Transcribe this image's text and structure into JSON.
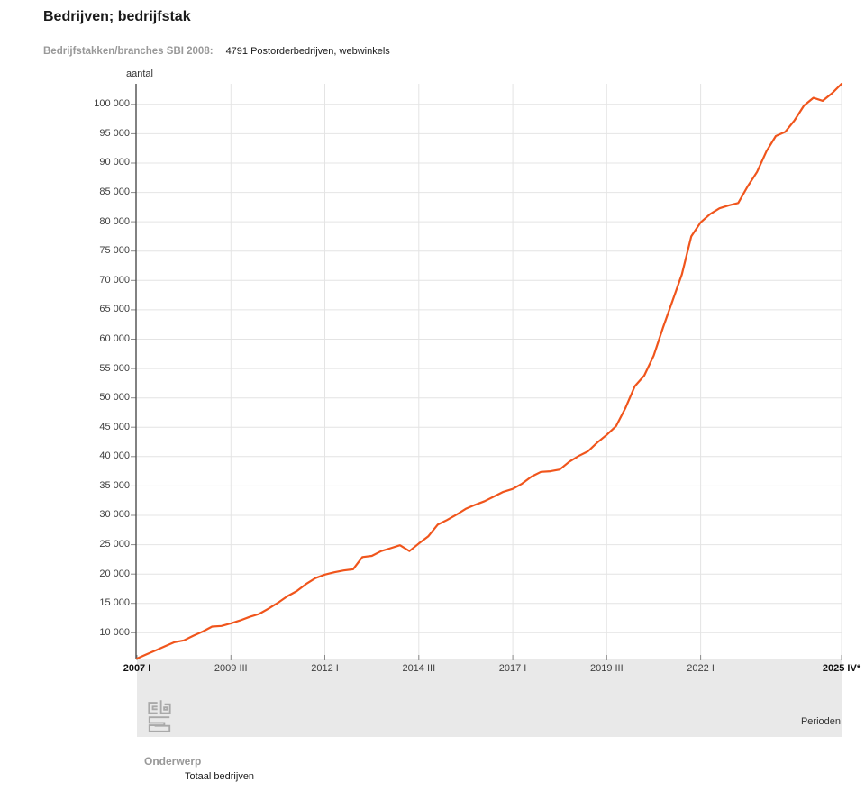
{
  "header": {
    "title": "Bedrijven; bedrijfstak",
    "filter_label": "Bedrijfstakken/branches SBI 2008:",
    "filter_value": "4791 Postorderbedrijven, webwinkels"
  },
  "legend": {
    "heading": "Onderwerp",
    "series_label": "Totaal bedrijven"
  },
  "colors": {
    "series_orange": "#F0551C",
    "gridline": "#e4e4e4",
    "axis": "#4d4d4d",
    "footer_band": "#e9e9e9",
    "muted_label_gray": "#999999"
  },
  "chart_data": {
    "type": "line",
    "title": "Bedrijven; bedrijfstak",
    "subtitle": "Bedrijfstakken/branches SBI 2008: 4791 Postorderbedrijven, webwinkels",
    "ylabel": "aantal",
    "xlabel": "Perioden",
    "x_period_start": "2007 I",
    "x_period_end": "2025 IV*",
    "x_frequency": "quarterly",
    "ylim": [
      5600,
      103500
    ],
    "grid": true,
    "legend_position": "bottom",
    "series_name": "Totaal bedrijven",
    "series_color": "#F0551C",
    "y_ticks": [
      {
        "value": 10000,
        "label": "10 000"
      },
      {
        "value": 15000,
        "label": "15 000"
      },
      {
        "value": 20000,
        "label": "20 000"
      },
      {
        "value": 25000,
        "label": "25 000"
      },
      {
        "value": 30000,
        "label": "30 000"
      },
      {
        "value": 35000,
        "label": "35 000"
      },
      {
        "value": 40000,
        "label": "40 000"
      },
      {
        "value": 45000,
        "label": "45 000"
      },
      {
        "value": 50000,
        "label": "50 000"
      },
      {
        "value": 55000,
        "label": "55 000"
      },
      {
        "value": 60000,
        "label": "60 000"
      },
      {
        "value": 65000,
        "label": "65 000"
      },
      {
        "value": 70000,
        "label": "70 000"
      },
      {
        "value": 75000,
        "label": "75 000"
      },
      {
        "value": 80000,
        "label": "80 000"
      },
      {
        "value": 85000,
        "label": "85 000"
      },
      {
        "value": 90000,
        "label": "90 000"
      },
      {
        "value": 95000,
        "label": "95 000"
      },
      {
        "value": 100000,
        "label": "100 000"
      }
    ],
    "x_ticks": [
      {
        "index": 0,
        "label": "2007 I",
        "bold": true
      },
      {
        "index": 10,
        "label": "2009 III",
        "bold": false
      },
      {
        "index": 20,
        "label": "2012 I",
        "bold": false
      },
      {
        "index": 30,
        "label": "2014 III",
        "bold": false
      },
      {
        "index": 40,
        "label": "2017 I",
        "bold": false
      },
      {
        "index": 50,
        "label": "2019 III",
        "bold": false
      },
      {
        "index": 60,
        "label": "2022 I",
        "bold": false
      },
      {
        "index": 75,
        "label": "2025 IV*",
        "bold": true
      }
    ],
    "values": [
      5600,
      6300,
      7000,
      7700,
      8400,
      8700,
      9500,
      10200,
      11050,
      11150,
      11600,
      12100,
      12700,
      13200,
      14100,
      15100,
      16200,
      17100,
      18300,
      19300,
      19900,
      20300,
      20600,
      20800,
      22900,
      23100,
      23900,
      24400,
      24900,
      23900,
      25200,
      26400,
      28400,
      29200,
      30100,
      31100,
      31800,
      32400,
      33200,
      34000,
      34500,
      35400,
      36600,
      37400,
      37500,
      37800,
      39100,
      40100,
      40900,
      42400,
      43700,
      45200,
      48300,
      52000,
      53800,
      57200,
      62000,
      66500,
      71000,
      77500,
      79900,
      81300,
      82300,
      82800,
      83200,
      86000,
      88500,
      92000,
      94600,
      95300,
      97300,
      99800,
      101100,
      100600,
      101900,
      103500
    ]
  }
}
